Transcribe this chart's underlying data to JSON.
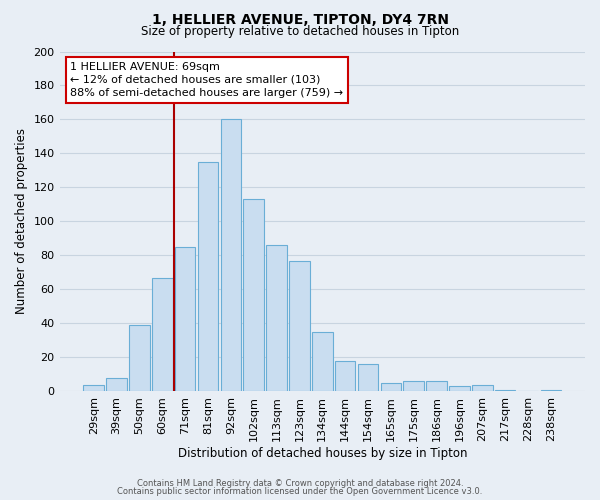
{
  "title": "1, HELLIER AVENUE, TIPTON, DY4 7RN",
  "subtitle": "Size of property relative to detached houses in Tipton",
  "xlabel": "Distribution of detached houses by size in Tipton",
  "ylabel": "Number of detached properties",
  "bar_labels": [
    "29sqm",
    "39sqm",
    "50sqm",
    "60sqm",
    "71sqm",
    "81sqm",
    "92sqm",
    "102sqm",
    "113sqm",
    "123sqm",
    "134sqm",
    "144sqm",
    "154sqm",
    "165sqm",
    "175sqm",
    "186sqm",
    "196sqm",
    "207sqm",
    "217sqm",
    "228sqm",
    "238sqm"
  ],
  "bar_values": [
    4,
    8,
    39,
    67,
    85,
    135,
    160,
    113,
    86,
    77,
    35,
    18,
    16,
    5,
    6,
    6,
    3,
    4,
    1,
    0,
    1
  ],
  "bar_color": "#c9ddf0",
  "bar_edge_color": "#6aaed6",
  "annotation_title": "1 HELLIER AVENUE: 69sqm",
  "annotation_line1": "← 12% of detached houses are smaller (103)",
  "annotation_line2": "88% of semi-detached houses are larger (759) →",
  "annotation_box_color": "#ffffff",
  "annotation_box_edge": "#cc0000",
  "vline_color": "#aa0000",
  "ylim": [
    0,
    200
  ],
  "yticks": [
    0,
    20,
    40,
    60,
    80,
    100,
    120,
    140,
    160,
    180,
    200
  ],
  "footer1": "Contains HM Land Registry data © Crown copyright and database right 2024.",
  "footer2": "Contains public sector information licensed under the Open Government Licence v3.0.",
  "bg_color": "#e8eef5",
  "plot_bg_color": "#e8eef5",
  "grid_color": "#c8d4e0",
  "vline_index": 4
}
